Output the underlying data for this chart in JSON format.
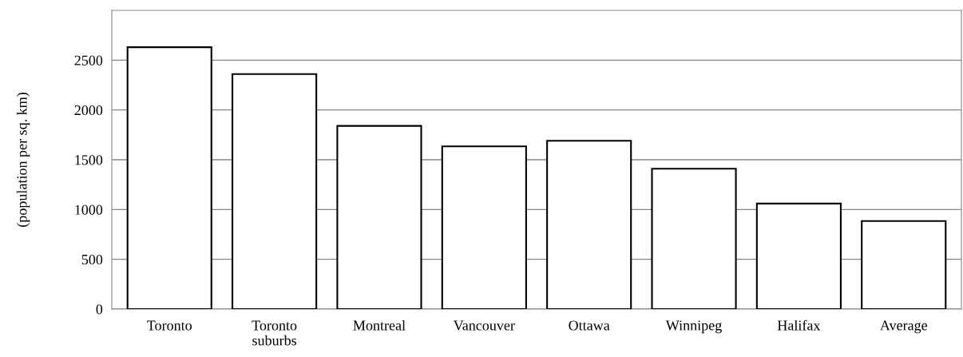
{
  "chart_data": {
    "type": "bar",
    "ylabel": "(population per sq. km)",
    "categories": [
      "Toronto",
      "Toronto\nsuburbs",
      "Montreal",
      "Vancouver",
      "Ottawa",
      "Winnipeg",
      "Halifax",
      "Average"
    ],
    "values": [
      2630,
      2360,
      1840,
      1635,
      1690,
      1410,
      1060,
      885
    ],
    "color": "#ffffff",
    "ylim": [
      0,
      3000
    ],
    "yticks": [
      0,
      500,
      1000,
      1500,
      2000,
      2500
    ],
    "grid": "y",
    "legend": false
  }
}
